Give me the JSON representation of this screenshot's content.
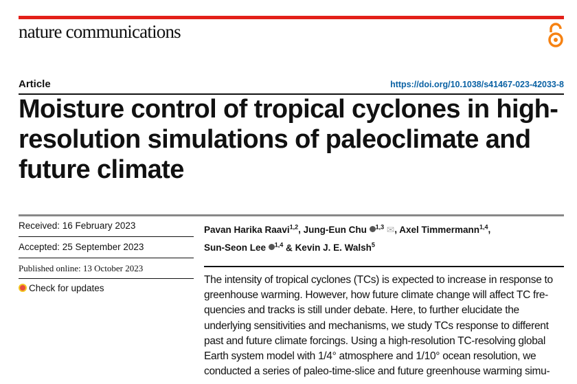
{
  "header": {
    "journal": "nature communications",
    "open_access_icon": "open-access-icon",
    "accent": "#e32019",
    "oa_color": "#f68212"
  },
  "article_type": "Article",
  "doi": "https://doi.org/10.1038/s41467-023-42033-8",
  "title": [
    "Moisture control of tropical cyclones in high-",
    "resolution simulations of paleoclimate and",
    "future climate"
  ],
  "meta": {
    "received": "Received: 16 February 2023",
    "accepted": "Accepted: 25 September 2023",
    "published": "Published online: 13 October 2023",
    "check_updates": "Check for updates"
  },
  "authors": [
    {
      "name": "Pavan Harika Raavi",
      "aff": "1,2",
      "sep": ", "
    },
    {
      "name": "Jung-Eun Chu",
      "aff": "1,3",
      "sep": ", "
    },
    {
      "name": "Axel Timmermann",
      "aff": "1,4",
      "sep": ","
    },
    {
      "name": "Sun-Seon Lee",
      "aff": "1,4",
      "sep": " & "
    },
    {
      "name": "Kevin J. E. Walsh",
      "aff": "5",
      "sep": ""
    }
  ],
  "abstract": [
    "The intensity of tropical cyclones (TCs) is expected to increase in response to",
    "greenhouse warming. However, how future climate change will affect TC fre-",
    "quencies and tracks is still under debate. Here, to further elucidate the",
    "underlying sensitivities and mechanisms, we study TCs response to different",
    "past and future climate forcings. Using a high-resolution TC-resolving global",
    "Earth system model with 1/4° atmosphere and 1/10° ocean resolution, we",
    "conducted a series of paleo-time-slice and future greenhouse warming simu-"
  ]
}
